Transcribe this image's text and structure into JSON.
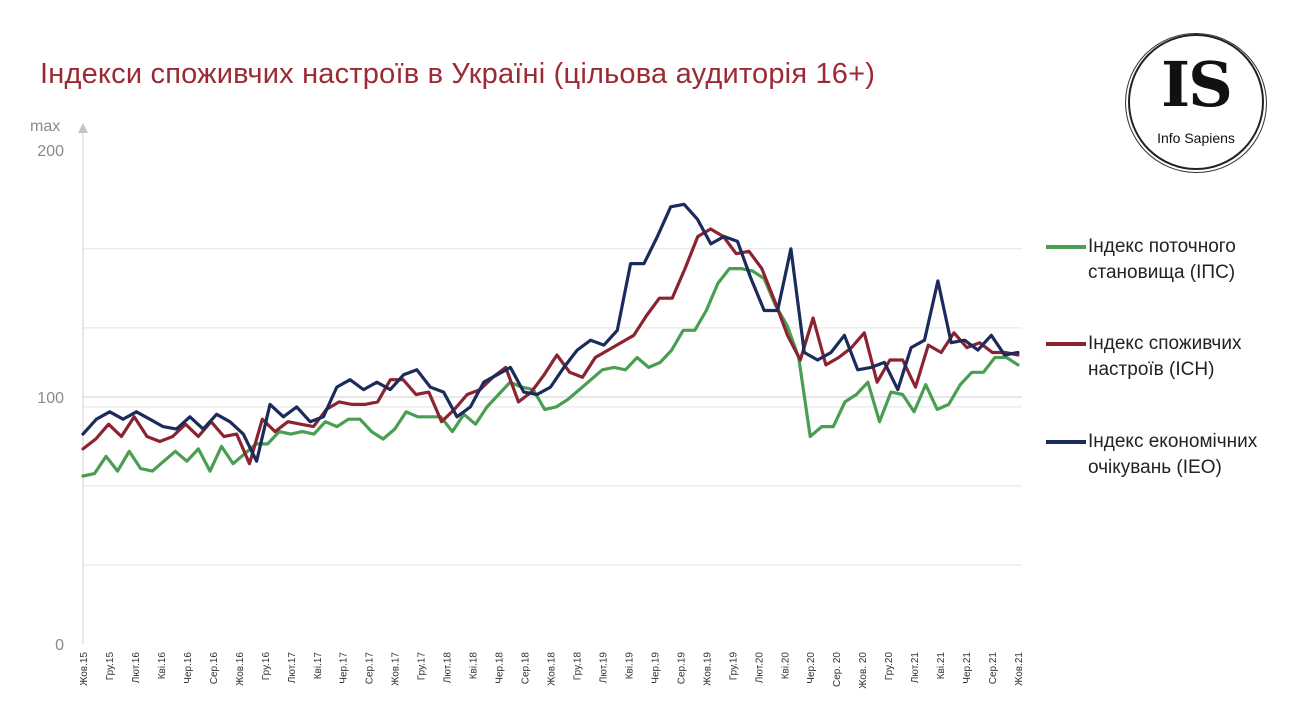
{
  "chart_data": {
    "type": "line",
    "title": "Індекси споживчих настроїв в Україні (цільова аудиторія 16+)",
    "y_axis": {
      "top_label": "max",
      "ticks": [
        0,
        100,
        200
      ],
      "ylim": [
        0,
        200
      ]
    },
    "grid": "horizontal",
    "legend_position": "right",
    "x_tick_labels": [
      "Жов.15",
      "Гру.15",
      "Лют.16",
      "Кві.16",
      "Чер.16",
      "Сер.16",
      "Жов.16",
      "Гру.16",
      "Лют.17",
      "Кві.17",
      "Чер.17",
      "Сер.17",
      "Жов.17",
      "Гру.17",
      "Лют.18",
      "Кві.18",
      "Чер.18",
      "Сер.18",
      "Жов.18",
      "Гру.18",
      "Лют.19",
      "Кві.19",
      "Чер.19",
      "Сер.19",
      "Жов.19",
      "Гру.19",
      "Лют.20",
      "Кві.20",
      "Чер.20",
      "Сер. 20",
      "Жов. 20",
      "Гру.20",
      "Лют.21",
      "Кві.21",
      "Чер.21",
      "Сер.21",
      "Жов.21"
    ],
    "series": [
      {
        "name": "Індекс поточного становища (ІПС)",
        "color": "#4a9e52",
        "values": [
          68,
          69,
          76,
          70,
          78,
          71,
          70,
          74,
          78,
          74,
          79,
          70,
          80,
          73,
          77,
          81,
          81,
          86,
          85,
          86,
          85,
          90,
          88,
          91,
          91,
          86,
          83,
          87,
          94,
          92,
          92,
          92,
          86,
          93,
          89,
          96,
          101,
          106,
          104,
          103,
          95,
          96,
          99,
          103,
          107,
          111,
          112,
          111,
          116,
          112,
          114,
          119,
          127,
          127,
          135,
          146,
          152,
          152,
          151,
          148,
          137,
          129,
          116,
          84,
          88,
          88,
          98,
          101,
          106,
          90,
          102,
          101,
          94,
          105,
          95,
          97,
          105,
          110,
          110,
          116,
          116,
          113
        ]
      },
      {
        "name": "Індекс споживчих настроїв (ІСН)",
        "color": "#8b2331",
        "values": [
          79,
          83,
          89,
          84,
          92,
          84,
          82,
          84,
          89,
          84,
          90,
          84,
          85,
          73,
          91,
          86,
          90,
          89,
          88,
          95,
          98,
          97,
          97,
          98,
          107,
          107,
          101,
          102,
          90,
          95,
          101,
          103,
          108,
          112,
          98,
          102,
          109,
          117,
          110,
          108,
          116,
          119,
          122,
          125,
          133,
          140,
          140,
          152,
          165,
          168,
          165,
          158,
          159,
          152,
          139,
          125,
          115,
          132,
          113,
          116,
          120,
          126,
          106,
          115,
          115,
          104,
          121,
          118,
          126,
          120,
          122,
          118,
          118,
          117
        ]
      },
      {
        "name": "Індекс економічних очікувань (ІЕО)",
        "color": "#1a2b5c",
        "values": [
          85,
          91,
          94,
          91,
          94,
          91,
          88,
          87,
          92,
          87,
          93,
          90,
          85,
          74,
          97,
          92,
          96,
          90,
          92,
          104,
          107,
          103,
          106,
          103,
          109,
          111,
          104,
          102,
          92,
          96,
          106,
          109,
          112,
          102,
          101,
          104,
          112,
          119,
          123,
          121,
          127,
          154,
          154,
          165,
          177,
          178,
          172,
          162,
          165,
          163,
          148,
          135,
          135,
          160,
          118,
          115,
          118,
          125,
          111,
          112,
          114,
          103,
          120,
          123,
          147,
          122,
          123,
          119,
          125,
          117,
          118
        ]
      }
    ]
  },
  "logo": {
    "mark": "IS",
    "text": "Info Sapiens"
  }
}
